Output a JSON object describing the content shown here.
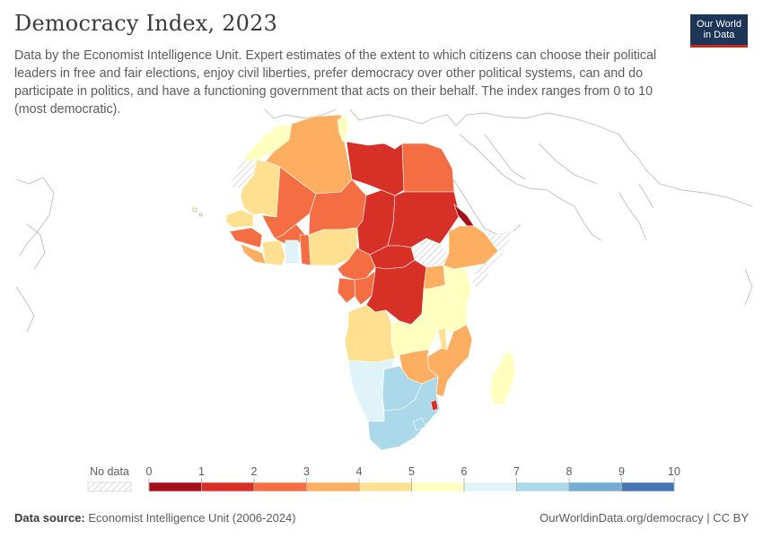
{
  "header": {
    "title": "Democracy Index, 2023",
    "subtitle": "Data by the Economist Intelligence Unit. Expert estimates of the extent to which citizens can choose their political leaders in free and fair elections, enjoy civil liberties, prefer democracy over other political systems, can and do participate in politics, and have a functioning government that acts on their behalf. The index ranges from 0 to 10 (most democratic)."
  },
  "logo": {
    "line1": "Our World",
    "line2": "in Data",
    "bg_color": "#1d3557",
    "accent_color": "#ce261e"
  },
  "legend": {
    "no_data_label": "No data",
    "ticks": [
      "0",
      "1",
      "2",
      "3",
      "4",
      "5",
      "6",
      "7",
      "8",
      "9",
      "10"
    ],
    "colors": [
      "#a50f15",
      "#d73027",
      "#f46d43",
      "#fdae61",
      "#fee090",
      "#ffffbf",
      "#e0f3f8",
      "#abd9e9",
      "#74add1",
      "#4575b4"
    ]
  },
  "footer": {
    "source_label": "Data source:",
    "source_text": "Economist Intelligence Unit (2006-2024)",
    "url": "OurWorldinData.org/democracy | CC BY"
  }
}
